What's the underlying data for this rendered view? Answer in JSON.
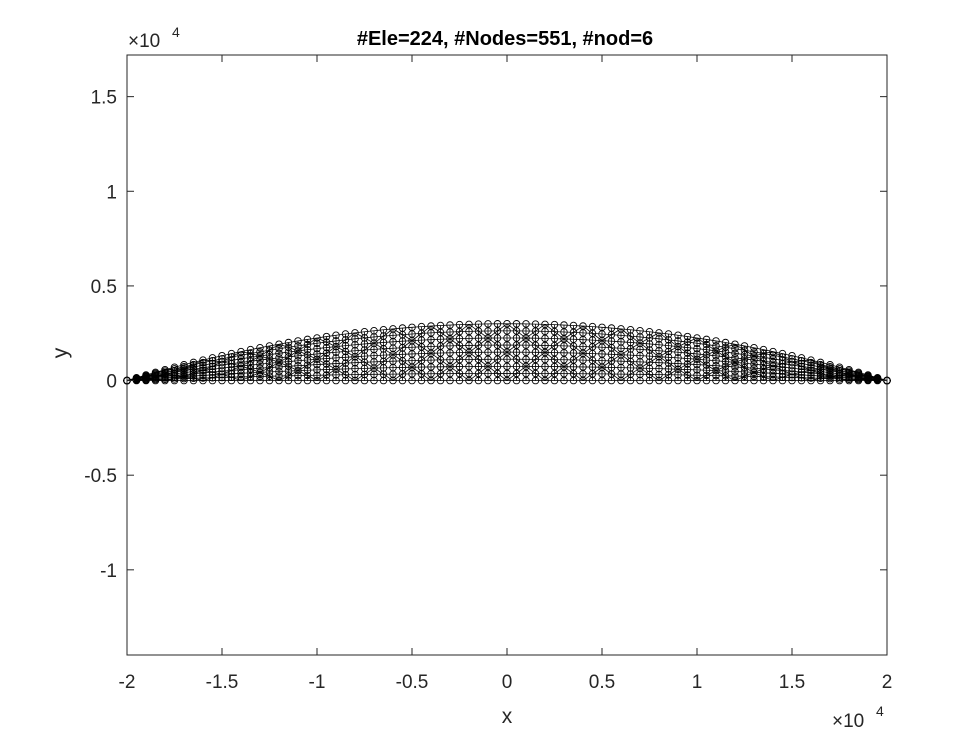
{
  "chart_data": {
    "type": "scatter",
    "title": "#Ele=224, #Nodes=551, #nod=6",
    "xlabel": "x",
    "ylabel": "y",
    "xlim": [
      -20000,
      20000
    ],
    "ylim": [
      -14500,
      17200
    ],
    "x_exponent_label": "×10",
    "x_exponent_power": "4",
    "y_exponent_label": "×10",
    "y_exponent_power": "4",
    "xticks": [
      -20000,
      -15000,
      -10000,
      -5000,
      0,
      5000,
      10000,
      15000,
      20000
    ],
    "xtick_labels": [
      "-2",
      "-1.5",
      "-1",
      "-0.5",
      "0",
      "0.5",
      "1",
      "1.5",
      "2"
    ],
    "yticks": [
      -10000,
      -5000,
      0,
      5000,
      10000,
      15000
    ],
    "ytick_labels": [
      "-1",
      "-0.5",
      "0",
      "0.5",
      "1",
      "1.5"
    ],
    "grid": false,
    "box": true,
    "mesh": {
      "description": "triangular finite-element mesh of an arch region, nodes shown as open circles",
      "span": [
        -20000,
        20000
      ],
      "crown_height": 3000,
      "marker": "circle-open",
      "marker_color": "#000000",
      "edge_color": "#000000"
    }
  },
  "colors": {
    "axes": "#262626",
    "markers": "#000000",
    "background": "#ffffff"
  }
}
